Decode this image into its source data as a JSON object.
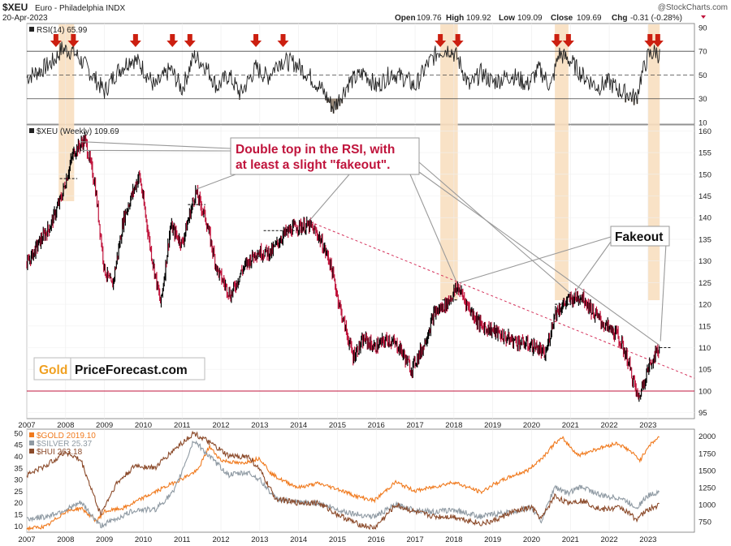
{
  "header": {
    "symbol": "$XEU",
    "description": "Euro - Philadelphia INDX",
    "date": "20-Apr-2023",
    "watermark": "@StockCharts.com",
    "quote": {
      "open_label": "Open",
      "open": "109.76",
      "high_label": "High",
      "high": "109.92",
      "low_label": "Low",
      "low": "109.09",
      "close_label": "Close",
      "close": "109.69",
      "chg_label": "Chg",
      "chg": "-0.31 (-0.28%)"
    }
  },
  "colors": {
    "price_up": "#000000",
    "price_down": "#c0143c",
    "highlight": "#f8dfc0",
    "arrow": "#cc1f10",
    "rsi_line": "#222222",
    "oversold_fill": "#9b8b7a",
    "gold": "#f07a1e",
    "silver": "#8f9aa3",
    "hui": "#8b4a2a",
    "trendline": "#d4305a",
    "level_100": "#c0143c",
    "annotation": "#c0143c"
  },
  "annotations": {
    "double_top": [
      "Double top in the RSI, with",
      "at least a slight \"fakeout\"."
    ],
    "fakeout": "Fakeout",
    "brand_gold": "Gold",
    "brand_rest": "PriceForecast.com"
  },
  "chart_data": [
    {
      "type": "line",
      "title": "RSI(14) 65.99",
      "series_name": "RSI(14)",
      "last_value": 65.99,
      "ylim": [
        10,
        92
      ],
      "yticks": [
        10,
        30,
        50,
        70,
        90
      ],
      "reference_lines": [
        30,
        50,
        70
      ],
      "x": [
        2007.0,
        2007.4,
        2007.7,
        2007.9,
        2008.2,
        2008.5,
        2008.8,
        2009.0,
        2009.3,
        2009.7,
        2009.9,
        2010.3,
        2010.7,
        2011.0,
        2011.3,
        2011.6,
        2011.9,
        2012.2,
        2012.5,
        2012.9,
        2013.2,
        2013.5,
        2013.9,
        2014.2,
        2014.6,
        2014.9,
        2015.3,
        2015.7,
        2016.0,
        2016.4,
        2016.8,
        2017.0,
        2017.3,
        2017.6,
        2017.9,
        2018.1,
        2018.4,
        2018.7,
        2019.0,
        2019.5,
        2019.9,
        2020.2,
        2020.5,
        2020.7,
        2021.0,
        2021.3,
        2021.7,
        2022.0,
        2022.3,
        2022.5,
        2022.7,
        2022.8,
        2023.0,
        2023.2,
        2023.3
      ],
      "values": [
        48,
        55,
        62,
        72,
        70,
        58,
        45,
        36,
        52,
        64,
        60,
        40,
        55,
        38,
        66,
        58,
        40,
        50,
        34,
        56,
        48,
        62,
        60,
        52,
        38,
        22,
        44,
        52,
        40,
        52,
        46,
        40,
        58,
        70,
        72,
        64,
        40,
        52,
        44,
        50,
        42,
        55,
        40,
        68,
        62,
        50,
        40,
        44,
        36,
        34,
        30,
        46,
        66,
        70,
        66
      ],
      "arrows_x": [
        2007.75,
        2008.2,
        2009.8,
        2010.75,
        2011.2,
        2012.9,
        2013.6,
        2017.65,
        2018.1,
        2020.65,
        2020.95,
        2023.05,
        2023.25
      ]
    },
    {
      "type": "line",
      "title": "$XEU (Weekly) 109.69",
      "series_name": "$XEU (Weekly)",
      "last_value": 109.69,
      "ylim": [
        94,
        161
      ],
      "yticks": [
        95,
        100,
        105,
        110,
        115,
        120,
        125,
        130,
        135,
        140,
        145,
        150,
        155,
        160
      ],
      "xticks": [
        2007,
        2008,
        2009,
        2010,
        2011,
        2012,
        2013,
        2014,
        2015,
        2016,
        2017,
        2018,
        2019,
        2020,
        2021,
        2022,
        2023
      ],
      "x": [
        2007.0,
        2007.3,
        2007.6,
        2007.9,
        2008.2,
        2008.5,
        2008.75,
        2009.0,
        2009.2,
        2009.5,
        2009.9,
        2010.2,
        2010.45,
        2010.7,
        2011.0,
        2011.35,
        2011.6,
        2011.9,
        2012.25,
        2012.55,
        2012.9,
        2013.3,
        2013.6,
        2013.95,
        2014.3,
        2014.5,
        2014.8,
        2015.1,
        2015.4,
        2015.7,
        2015.95,
        2016.3,
        2016.6,
        2016.9,
        2017.2,
        2017.5,
        2017.8,
        2018.1,
        2018.4,
        2018.7,
        2019.0,
        2019.4,
        2019.8,
        2020.15,
        2020.35,
        2020.6,
        2020.95,
        2021.3,
        2021.6,
        2021.9,
        2022.2,
        2022.45,
        2022.6,
        2022.75,
        2022.95,
        2023.15,
        2023.3
      ],
      "values": [
        129,
        134,
        138,
        145,
        155,
        158,
        148,
        128,
        124,
        140,
        150,
        132,
        120,
        138,
        134,
        146,
        140,
        128,
        122,
        128,
        132,
        132,
        136,
        138,
        138,
        136,
        130,
        118,
        108,
        112,
        110,
        112,
        110,
        105,
        110,
        118,
        120,
        124,
        119,
        115,
        114,
        112,
        111,
        110,
        108,
        118,
        121,
        122,
        118,
        115,
        113,
        108,
        103,
        98,
        104,
        108,
        110
      ],
      "trendline": {
        "from": {
          "x": 2014.3,
          "y": 139
        },
        "to": {
          "x": 2023.4,
          "y": 107
        }
      },
      "horizontal_levels": [
        100
      ],
      "highlight_periods": [
        [
          2007.82,
          2008.22
        ],
        [
          2017.65,
          2018.1
        ],
        [
          2020.6,
          2020.95
        ],
        [
          2023.0,
          2023.3
        ]
      ],
      "resistance_segments": [
        {
          "x": [
            2007.85,
            2008.3
          ],
          "y": 149
        },
        {
          "x": [
            2011.15,
            2011.6
          ],
          "y": 143
        },
        {
          "x": [
            2013.1,
            2014.2
          ],
          "y": 137
        },
        {
          "x": [
            2017.7,
            2018.1
          ],
          "y": 121
        },
        {
          "x": [
            2020.6,
            2021.0
          ],
          "y": 120
        },
        {
          "x": [
            2023.2,
            2023.6
          ],
          "y": 110
        }
      ]
    },
    {
      "type": "line",
      "xticks": [
        2007,
        2008,
        2009,
        2010,
        2011,
        2012,
        2013,
        2014,
        2015,
        2016,
        2017,
        2018,
        2019,
        2020,
        2021,
        2022,
        2023
      ],
      "left_axis": {
        "ylim": [
          8,
          51
        ],
        "yticks": [
          10,
          15,
          20,
          25,
          30,
          35,
          40,
          45,
          50
        ]
      },
      "right_axis": {
        "ylim": [
          620,
          2080
        ],
        "yticks": [
          750,
          1000,
          1250,
          1500,
          1750,
          2000
        ]
      },
      "series": [
        {
          "name": "$GOLD 2019.10",
          "axis": "right",
          "last_value": 2019.1,
          "x": [
            2007.0,
            2007.5,
            2008.0,
            2008.4,
            2008.8,
            2009.0,
            2009.5,
            2010.0,
            2010.5,
            2011.0,
            2011.4,
            2011.7,
            2012.0,
            2012.5,
            2013.0,
            2013.3,
            2013.6,
            2014.0,
            2014.5,
            2015.0,
            2015.5,
            2015.95,
            2016.5,
            2017.0,
            2017.5,
            2018.0,
            2018.7,
            2019.0,
            2019.5,
            2019.9,
            2020.3,
            2020.6,
            2020.8,
            2021.2,
            2021.6,
            2022.2,
            2022.5,
            2022.8,
            2023.0,
            2023.3
          ],
          "values": [
            650,
            680,
            900,
            950,
            760,
            900,
            950,
            1100,
            1240,
            1380,
            1500,
            1850,
            1650,
            1600,
            1680,
            1450,
            1350,
            1250,
            1310,
            1230,
            1120,
            1060,
            1330,
            1200,
            1260,
            1330,
            1180,
            1290,
            1420,
            1500,
            1700,
            1900,
            1970,
            1720,
            1800,
            1900,
            1800,
            1650,
            1850,
            2000
          ]
        },
        {
          "name": "$SILVER 25.37",
          "axis": "left",
          "last_value": 25.37,
          "x": [
            2007.0,
            2007.5,
            2008.0,
            2008.4,
            2008.9,
            2009.3,
            2009.8,
            2010.3,
            2010.8,
            2011.3,
            2011.7,
            2012.2,
            2012.7,
            2013.0,
            2013.4,
            2013.9,
            2014.5,
            2015.0,
            2015.5,
            2015.95,
            2016.5,
            2017.0,
            2017.5,
            2018.0,
            2018.7,
            2019.0,
            2019.5,
            2020.0,
            2020.25,
            2020.6,
            2020.9,
            2021.3,
            2021.8,
            2022.3,
            2022.7,
            2023.0,
            2023.3
          ],
          "values": [
            13,
            14,
            17,
            20,
            10,
            13,
            17,
            17,
            25,
            47,
            40,
            32,
            33,
            30,
            22,
            20,
            20,
            17,
            15,
            14,
            19,
            17,
            16,
            17,
            14,
            15,
            16,
            18,
            12,
            27,
            24,
            27,
            23,
            22,
            18,
            23,
            25
          ]
        },
        {
          "name": "$HUI 263.18",
          "axis": "left",
          "last_value": 263.18,
          "x": [
            2007.0,
            2007.5,
            2008.0,
            2008.4,
            2008.9,
            2009.3,
            2009.8,
            2010.3,
            2010.8,
            2011.3,
            2011.7,
            2012.2,
            2012.7,
            2013.0,
            2013.4,
            2013.9,
            2014.5,
            2015.0,
            2015.5,
            2015.95,
            2016.5,
            2017.0,
            2017.5,
            2018.0,
            2018.7,
            2019.0,
            2019.5,
            2020.0,
            2020.25,
            2020.6,
            2020.9,
            2021.3,
            2021.8,
            2022.3,
            2022.7,
            2023.0,
            2023.3
          ],
          "values": [
            32,
            36,
            42,
            38,
            15,
            28,
            36,
            35,
            43,
            50,
            46,
            40,
            40,
            34,
            22,
            20,
            20,
            15,
            11,
            9,
            19,
            16,
            14,
            14,
            11,
            12,
            16,
            18,
            13,
            23,
            20,
            21,
            17,
            18,
            13,
            17,
            19
          ]
        }
      ]
    }
  ]
}
